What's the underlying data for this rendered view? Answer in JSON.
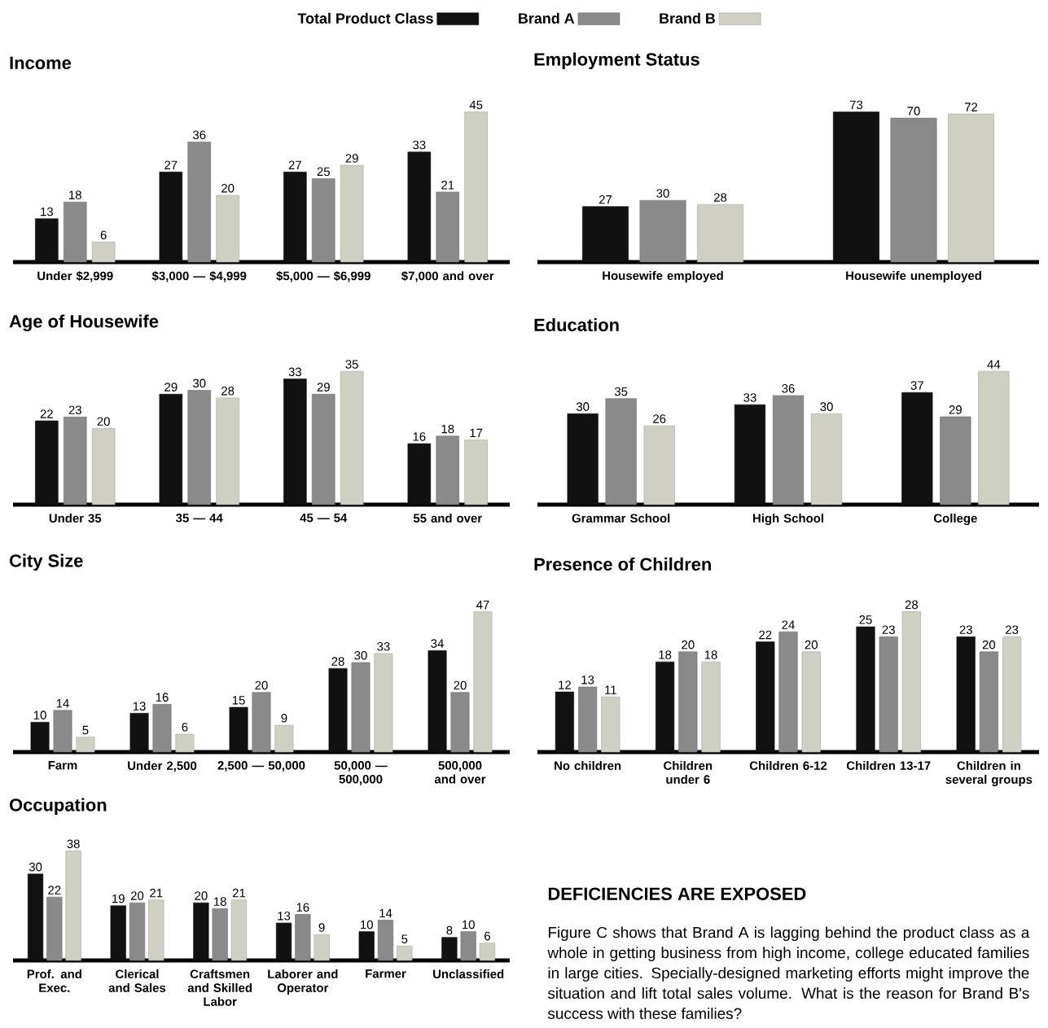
{
  "chart_data": [
    {
      "type": "bar",
      "title": "Income",
      "categories": [
        "Under $2,999",
        "$3,000 — $4,999",
        "$5,000 — $6,999",
        "$7,000 and over"
      ],
      "series": [
        {
          "name": "Total Product Class",
          "color": "#111111",
          "values": [
            13,
            27,
            27,
            33
          ]
        },
        {
          "name": "Brand A",
          "color": "#8a8a8a",
          "values": [
            18,
            36,
            25,
            21
          ]
        },
        {
          "name": "Brand B",
          "color": "#cfcfc4",
          "values": [
            6,
            20,
            29,
            45
          ]
        }
      ],
      "data_labels": true,
      "legend": "top"
    },
    {
      "type": "bar",
      "title": "Employment Status",
      "categories": [
        "Housewife employed",
        "Housewife unemployed"
      ],
      "series": [
        {
          "color": "#111111",
          "values": [
            27,
            73
          ]
        },
        {
          "color": "#8a8a8a",
          "values": [
            30,
            70
          ]
        },
        {
          "color": "#cfcfc4",
          "values": [
            28,
            72
          ]
        }
      ],
      "data_labels": true
    },
    {
      "type": "bar",
      "title": "Age of Housewife",
      "categories": [
        "Under 35",
        "35 — 44",
        "45 — 54",
        "55 and over"
      ],
      "series": [
        {
          "color": "#111111",
          "values": [
            22,
            29,
            33,
            16
          ]
        },
        {
          "color": "#8a8a8a",
          "values": [
            23,
            30,
            29,
            18
          ]
        },
        {
          "color": "#cfcfc4",
          "values": [
            20,
            28,
            35,
            17
          ]
        }
      ],
      "data_labels": true
    },
    {
      "type": "bar",
      "title": "Education",
      "categories": [
        "Grammar School",
        "High School",
        "College"
      ],
      "series": [
        {
          "color": "#111111",
          "values": [
            30,
            33,
            37
          ]
        },
        {
          "color": "#8a8a8a",
          "values": [
            35,
            36,
            29
          ]
        },
        {
          "color": "#cfcfc4",
          "values": [
            26,
            30,
            44
          ]
        }
      ],
      "data_labels": true
    },
    {
      "type": "bar",
      "title": "City Size",
      "categories": [
        "Farm",
        "Under 2,500",
        "2,500 — 50,000",
        "50,000 — 500,000",
        "500,000 and over"
      ],
      "series": [
        {
          "color": "#111111",
          "values": [
            10,
            13,
            15,
            28,
            34
          ]
        },
        {
          "color": "#8a8a8a",
          "values": [
            14,
            16,
            20,
            30,
            20
          ]
        },
        {
          "color": "#cfcfc4",
          "values": [
            5,
            6,
            9,
            33,
            47
          ]
        }
      ],
      "data_labels": true
    },
    {
      "type": "bar",
      "title": "Presence of Children",
      "categories": [
        "No children",
        "Children under 6",
        "Children 6-12",
        "Children 13-17",
        "Children in several groups"
      ],
      "series": [
        {
          "color": "#111111",
          "values": [
            12,
            18,
            22,
            25,
            23
          ]
        },
        {
          "color": "#8a8a8a",
          "values": [
            13,
            20,
            24,
            23,
            20
          ]
        },
        {
          "color": "#cfcfc4",
          "values": [
            11,
            18,
            20,
            28,
            23
          ]
        }
      ],
      "data_labels": true
    },
    {
      "type": "bar",
      "title": "Occupation",
      "categories": [
        "Prof. and Exec.",
        "Clerical and Sales",
        "Craftsmen and Skilled Labor",
        "Laborer and Operator",
        "Farmer",
        "Unclassified"
      ],
      "series": [
        {
          "color": "#111111",
          "values": [
            30,
            19,
            20,
            13,
            10,
            8
          ]
        },
        {
          "color": "#8a8a8a",
          "values": [
            22,
            20,
            18,
            16,
            14,
            10
          ]
        },
        {
          "color": "#cfcfc4",
          "values": [
            38,
            21,
            21,
            9,
            5,
            6
          ]
        }
      ],
      "data_labels": true
    },
    {
      "type": "other",
      "title": "DEFICIENCIES ARE EXPOSED",
      "annotations": [
        "Figure C shows that Brand A is lagging behind the product class as a whole in getting business from high income, college educated families in large cities. Specially-designed marketing efforts might improve the situation and lift total sales volume. What is the reason for Brand B's success with these families?"
      ]
    }
  ]
}
